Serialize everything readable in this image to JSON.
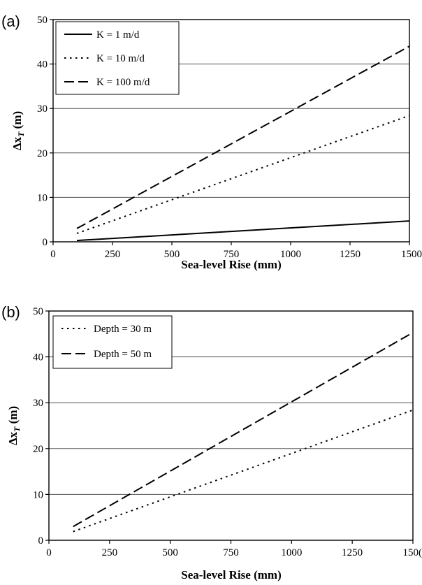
{
  "chart_data": [
    {
      "panel": "(a)",
      "type": "line",
      "xlabel": "Sea-level Rise (mm)",
      "ylabel_main": "Δx",
      "ylabel_sub": "T",
      "ylabel_unit": "(m)",
      "xlim": [
        0,
        1500
      ],
      "ylim": [
        0,
        50
      ],
      "xticks": [
        "0",
        "250",
        "500",
        "750",
        "1000",
        "1250",
        "1500"
      ],
      "yticks": [
        "0",
        "10",
        "20",
        "30",
        "40",
        "50"
      ],
      "grid": "horizontal",
      "legend_position": "top-left",
      "series": [
        {
          "name": "K = 1 m/d",
          "style": "solid",
          "x": [
            100,
            1500
          ],
          "y": [
            0.3,
            4.7
          ]
        },
        {
          "name": "K = 10 m/d",
          "style": "dotted",
          "x": [
            100,
            1500
          ],
          "y": [
            1.9,
            28.4
          ]
        },
        {
          "name": "K = 100 m/d",
          "style": "dashed",
          "x": [
            100,
            1500
          ],
          "y": [
            3.0,
            44.0
          ]
        }
      ]
    },
    {
      "panel": "(b)",
      "type": "line",
      "xlabel": "Sea-level Rise (mm)",
      "ylabel_main": "Δx",
      "ylabel_sub": "T",
      "ylabel_unit": "(m)",
      "xlim": [
        0,
        1500
      ],
      "ylim": [
        0,
        50
      ],
      "xticks": [
        "0",
        "250",
        "500",
        "750",
        "1000",
        "1250",
        "150("
      ],
      "yticks": [
        "0",
        "10",
        "20",
        "30",
        "40",
        "50"
      ],
      "grid": "horizontal",
      "legend_position": "top-left",
      "series": [
        {
          "name": "Depth = 30 m",
          "style": "dotted",
          "x": [
            100,
            1500
          ],
          "y": [
            1.9,
            28.4
          ]
        },
        {
          "name": "Depth = 50 m",
          "style": "dashed",
          "x": [
            100,
            1500
          ],
          "y": [
            3.0,
            45.3
          ]
        }
      ]
    }
  ]
}
